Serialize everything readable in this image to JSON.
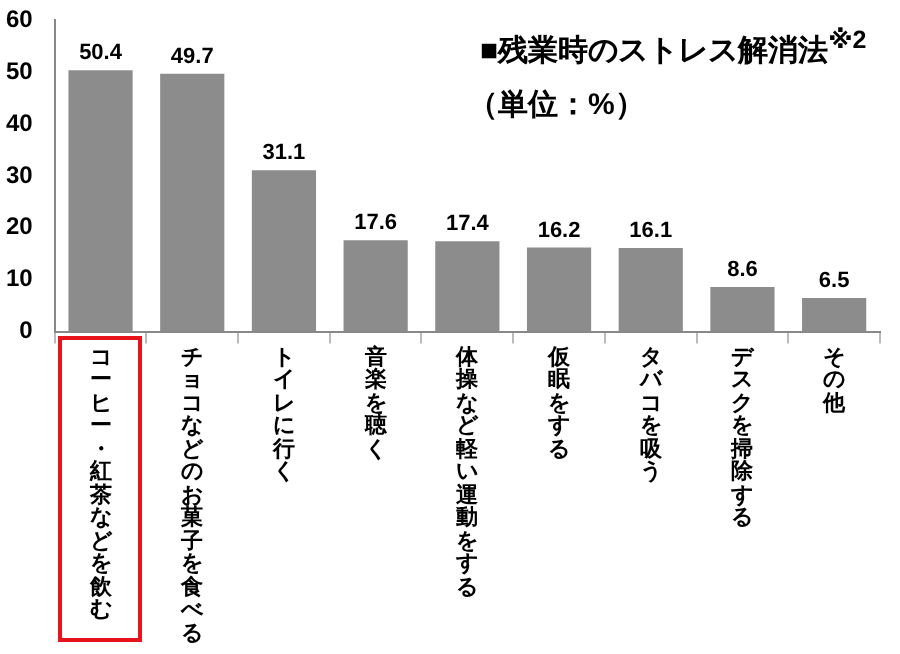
{
  "chart_data": {
    "type": "bar",
    "title": "■残業時のストレス解消法$^{※2}$",
    "subtitle": "（単位：%）",
    "categories": [
      "コーヒー・紅茶などを飲む",
      "チョコなどのお菓子を食べる",
      "トイレに行く",
      "音楽を聴く",
      "体操など軽い運動をする",
      "仮眠をする",
      "タバコを吸う",
      "デスクを掃除する",
      "その他"
    ],
    "values": [
      50.4,
      49.7,
      31.1,
      17.6,
      17.4,
      16.2,
      16.1,
      8.6,
      6.5
    ],
    "color": "#8c8c8c",
    "ylim": [
      0,
      60
    ],
    "yticks": [
      0,
      10,
      20,
      30,
      40,
      50,
      60
    ],
    "grid": false,
    "legend": false,
    "data_labels": true
  }
}
